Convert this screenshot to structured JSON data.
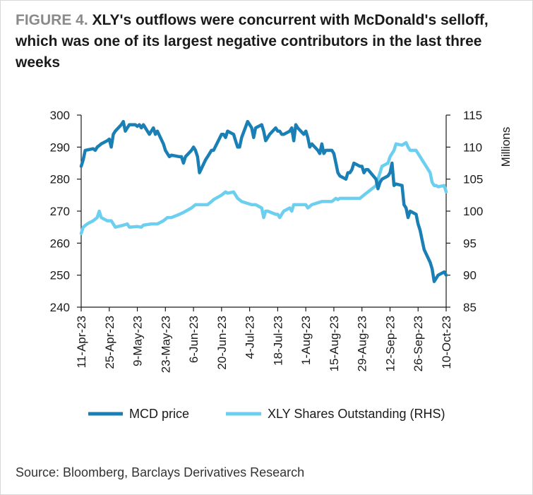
{
  "title": {
    "figure_label": "FIGURE 4.",
    "text": "XLY's outflows were concurrent with McDonald's selloff, which was one of its largest negative contributors in the last three weeks"
  },
  "source": "Source: Bloomberg, Barclays Derivatives Research",
  "colors": {
    "mcd": "#1a7fb5",
    "xly": "#6ccff0",
    "axis": "#1a1a1a"
  },
  "chart_data": {
    "type": "line",
    "x_ticks": [
      "11-Apr-23",
      "25-Apr-23",
      "9-May-23",
      "23-May-23",
      "6-Jun-23",
      "20-Jun-23",
      "4-Jul-23",
      "18-Jul-23",
      "1-Aug-23",
      "15-Aug-23",
      "29-Aug-23",
      "12-Sep-23",
      "26-Sep-23",
      "10-Oct-23"
    ],
    "y_left": {
      "ylim": [
        240,
        300
      ],
      "ticks": [
        240,
        250,
        260,
        270,
        280,
        290,
        300
      ]
    },
    "y_right": {
      "ylim": [
        85,
        115
      ],
      "ticks": [
        85,
        90,
        95,
        100,
        105,
        110,
        115
      ],
      "label": "Millions"
    },
    "legend_position": "bottom",
    "series": [
      {
        "name": "MCD price",
        "axis": "left",
        "points": [
          [
            "2023-04-11",
            284
          ],
          [
            "2023-04-12",
            286
          ],
          [
            "2023-04-13",
            289
          ],
          [
            "2023-04-17",
            289.5
          ],
          [
            "2023-04-18",
            289
          ],
          [
            "2023-04-19",
            290
          ],
          [
            "2023-04-20",
            290.5
          ],
          [
            "2023-04-21",
            291
          ],
          [
            "2023-04-24",
            292
          ],
          [
            "2023-04-25",
            292.5
          ],
          [
            "2023-04-26",
            290
          ],
          [
            "2023-04-27",
            294
          ],
          [
            "2023-04-28",
            295
          ],
          [
            "2023-05-01",
            297
          ],
          [
            "2023-05-02",
            298
          ],
          [
            "2023-05-03",
            295
          ],
          [
            "2023-05-04",
            296
          ],
          [
            "2023-05-05",
            297
          ],
          [
            "2023-05-08",
            297
          ],
          [
            "2023-05-09",
            296.5
          ],
          [
            "2023-05-10",
            297
          ],
          [
            "2023-05-11",
            296
          ],
          [
            "2023-05-12",
            297
          ],
          [
            "2023-05-15",
            294
          ],
          [
            "2023-05-16",
            295
          ],
          [
            "2023-05-17",
            296
          ],
          [
            "2023-05-18",
            294
          ],
          [
            "2023-05-19",
            295
          ],
          [
            "2023-05-22",
            291
          ],
          [
            "2023-05-23",
            289
          ],
          [
            "2023-05-24",
            288
          ],
          [
            "2023-05-25",
            287
          ],
          [
            "2023-05-26",
            287.5
          ],
          [
            "2023-05-30",
            287
          ],
          [
            "2023-05-31",
            287
          ],
          [
            "2023-06-01",
            285
          ],
          [
            "2023-06-02",
            287
          ],
          [
            "2023-06-05",
            289
          ],
          [
            "2023-06-06",
            290
          ],
          [
            "2023-06-07",
            289
          ],
          [
            "2023-06-08",
            287
          ],
          [
            "2023-06-09",
            282
          ],
          [
            "2023-06-12",
            286
          ],
          [
            "2023-06-13",
            287
          ],
          [
            "2023-06-14",
            288
          ],
          [
            "2023-06-15",
            289
          ],
          [
            "2023-06-16",
            289
          ],
          [
            "2023-06-20",
            294
          ],
          [
            "2023-06-21",
            294
          ],
          [
            "2023-06-22",
            293
          ],
          [
            "2023-06-23",
            295
          ],
          [
            "2023-06-26",
            294
          ],
          [
            "2023-06-27",
            292
          ],
          [
            "2023-06-28",
            290
          ],
          [
            "2023-06-29",
            290
          ],
          [
            "2023-06-30",
            293
          ],
          [
            "2023-07-03",
            298
          ],
          [
            "2023-07-05",
            296
          ],
          [
            "2023-07-06",
            293
          ],
          [
            "2023-07-07",
            296
          ],
          [
            "2023-07-10",
            297
          ],
          [
            "2023-07-11",
            295
          ],
          [
            "2023-07-12",
            292
          ],
          [
            "2023-07-13",
            293
          ],
          [
            "2023-07-14",
            294
          ],
          [
            "2023-07-17",
            296
          ],
          [
            "2023-07-18",
            295
          ],
          [
            "2023-07-19",
            295
          ],
          [
            "2023-07-20",
            294
          ],
          [
            "2023-07-21",
            294
          ],
          [
            "2023-07-24",
            295
          ],
          [
            "2023-07-25",
            296
          ],
          [
            "2023-07-26",
            292
          ],
          [
            "2023-07-27",
            297
          ],
          [
            "2023-07-28",
            296
          ],
          [
            "2023-07-31",
            294
          ],
          [
            "2023-08-01",
            295
          ],
          [
            "2023-08-02",
            293
          ],
          [
            "2023-08-03",
            290
          ],
          [
            "2023-08-04",
            291
          ],
          [
            "2023-08-07",
            289
          ],
          [
            "2023-08-08",
            288
          ],
          [
            "2023-08-09",
            291
          ],
          [
            "2023-08-10",
            288
          ],
          [
            "2023-08-11",
            289
          ],
          [
            "2023-08-14",
            289
          ],
          [
            "2023-08-15",
            288
          ],
          [
            "2023-08-16",
            285
          ],
          [
            "2023-08-17",
            282
          ],
          [
            "2023-08-18",
            281
          ],
          [
            "2023-08-21",
            280
          ],
          [
            "2023-08-22",
            282
          ],
          [
            "2023-08-23",
            282
          ],
          [
            "2023-08-24",
            283
          ],
          [
            "2023-08-25",
            285
          ],
          [
            "2023-08-28",
            284
          ],
          [
            "2023-08-29",
            284
          ],
          [
            "2023-08-30",
            282
          ],
          [
            "2023-08-31",
            283
          ],
          [
            "2023-09-01",
            283
          ],
          [
            "2023-09-05",
            280
          ],
          [
            "2023-09-06",
            277
          ],
          [
            "2023-09-07",
            279
          ],
          [
            "2023-09-08",
            280
          ],
          [
            "2023-09-11",
            281
          ],
          [
            "2023-09-12",
            282
          ],
          [
            "2023-09-13",
            285
          ],
          [
            "2023-09-14",
            278
          ],
          [
            "2023-09-15",
            278.5
          ],
          [
            "2023-09-18",
            278
          ],
          [
            "2023-09-19",
            272
          ],
          [
            "2023-09-20",
            271
          ],
          [
            "2023-09-21",
            268
          ],
          [
            "2023-09-22",
            270
          ],
          [
            "2023-09-25",
            269
          ],
          [
            "2023-09-26",
            266
          ],
          [
            "2023-09-27",
            264
          ],
          [
            "2023-09-28",
            261
          ],
          [
            "2023-09-29",
            258
          ],
          [
            "2023-10-02",
            254
          ],
          [
            "2023-10-03",
            252
          ],
          [
            "2023-10-04",
            248
          ],
          [
            "2023-10-05",
            249
          ],
          [
            "2023-10-06",
            250
          ],
          [
            "2023-10-09",
            251
          ],
          [
            "2023-10-10",
            250
          ]
        ]
      },
      {
        "name": "XLY Shares Outstanding (RHS)",
        "axis": "right",
        "points": [
          [
            "2023-04-11",
            96.5
          ],
          [
            "2023-04-12",
            97.5
          ],
          [
            "2023-04-14",
            98
          ],
          [
            "2023-04-17",
            98.5
          ],
          [
            "2023-04-19",
            99
          ],
          [
            "2023-04-20",
            100
          ],
          [
            "2023-04-21",
            99
          ],
          [
            "2023-04-24",
            98.5
          ],
          [
            "2023-04-26",
            98.5
          ],
          [
            "2023-04-28",
            97.5
          ],
          [
            "2023-05-02",
            97.8
          ],
          [
            "2023-05-04",
            98
          ],
          [
            "2023-05-05",
            97.5
          ],
          [
            "2023-05-09",
            97.6
          ],
          [
            "2023-05-11",
            97.5
          ],
          [
            "2023-05-12",
            97.8
          ],
          [
            "2023-05-16",
            98
          ],
          [
            "2023-05-19",
            98
          ],
          [
            "2023-05-22",
            98.5
          ],
          [
            "2023-05-24",
            99
          ],
          [
            "2023-05-26",
            99
          ],
          [
            "2023-05-30",
            99.5
          ],
          [
            "2023-06-01",
            99.8
          ],
          [
            "2023-06-05",
            100.5
          ],
          [
            "2023-06-07",
            101
          ],
          [
            "2023-06-09",
            101
          ],
          [
            "2023-06-13",
            101
          ],
          [
            "2023-06-15",
            101.5
          ],
          [
            "2023-06-16",
            101.8
          ],
          [
            "2023-06-20",
            102.5
          ],
          [
            "2023-06-22",
            103
          ],
          [
            "2023-06-23",
            102.8
          ],
          [
            "2023-06-26",
            103
          ],
          [
            "2023-06-28",
            102
          ],
          [
            "2023-06-30",
            101.5
          ],
          [
            "2023-07-05",
            101
          ],
          [
            "2023-07-07",
            101
          ],
          [
            "2023-07-10",
            100.5
          ],
          [
            "2023-07-11",
            99
          ],
          [
            "2023-07-12",
            100
          ],
          [
            "2023-07-13",
            100
          ],
          [
            "2023-07-17",
            99.5
          ],
          [
            "2023-07-18",
            99.5
          ],
          [
            "2023-07-19",
            99
          ],
          [
            "2023-07-20",
            99.5
          ],
          [
            "2023-07-21",
            100
          ],
          [
            "2023-07-24",
            100.5
          ],
          [
            "2023-07-25",
            100
          ],
          [
            "2023-07-26",
            101
          ],
          [
            "2023-07-28",
            101
          ],
          [
            "2023-08-01",
            101
          ],
          [
            "2023-08-02",
            100.5
          ],
          [
            "2023-08-04",
            101
          ],
          [
            "2023-08-07",
            101.3
          ],
          [
            "2023-08-09",
            101.5
          ],
          [
            "2023-08-11",
            101.5
          ],
          [
            "2023-08-14",
            101.5
          ],
          [
            "2023-08-16",
            102
          ],
          [
            "2023-08-17",
            101.8
          ],
          [
            "2023-08-18",
            102
          ],
          [
            "2023-08-21",
            102
          ],
          [
            "2023-08-23",
            102
          ],
          [
            "2023-08-25",
            102
          ],
          [
            "2023-08-28",
            102
          ],
          [
            "2023-08-30",
            102.5
          ],
          [
            "2023-09-01",
            103
          ],
          [
            "2023-09-05",
            104
          ],
          [
            "2023-09-07",
            106
          ],
          [
            "2023-09-08",
            107
          ],
          [
            "2023-09-11",
            107.5
          ],
          [
            "2023-09-12",
            108.5
          ],
          [
            "2023-09-13",
            109
          ],
          [
            "2023-09-14",
            109.5
          ],
          [
            "2023-09-15",
            110.5
          ],
          [
            "2023-09-18",
            110.3
          ],
          [
            "2023-09-19",
            110.5
          ],
          [
            "2023-09-20",
            110.7
          ],
          [
            "2023-09-21",
            110
          ],
          [
            "2023-09-22",
            109.5
          ],
          [
            "2023-09-25",
            109.5
          ],
          [
            "2023-09-26",
            109
          ],
          [
            "2023-09-27",
            108.5
          ],
          [
            "2023-09-28",
            108
          ],
          [
            "2023-09-29",
            107.5
          ],
          [
            "2023-10-02",
            106
          ],
          [
            "2023-10-03",
            104.5
          ],
          [
            "2023-10-04",
            104
          ],
          [
            "2023-10-05",
            104
          ],
          [
            "2023-10-06",
            103.8
          ],
          [
            "2023-10-09",
            104
          ],
          [
            "2023-10-10",
            103
          ]
        ]
      }
    ]
  }
}
